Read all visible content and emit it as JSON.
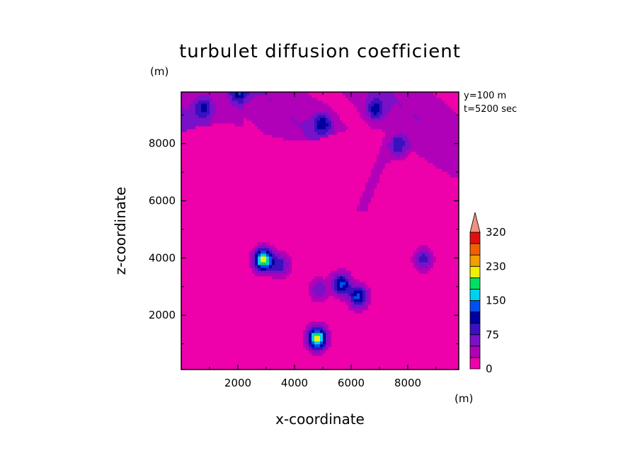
{
  "chart_data": {
    "type": "heatmap",
    "title": "turbulet diffusion coefficient",
    "xlabel": "x-coordinate",
    "ylabel": "z-coordinate",
    "x_unit": "(m)",
    "y_unit": "(m)",
    "xlim": [
      0,
      9800
    ],
    "ylim": [
      100,
      9800
    ],
    "xticks": [
      2000,
      4000,
      6000,
      8000
    ],
    "yticks": [
      2000,
      4000,
      6000,
      8000
    ],
    "annotations": [
      "y=100 m",
      "t=5200 sec"
    ],
    "colorbar": {
      "levels": [
        0,
        25,
        50,
        75,
        100,
        125,
        150,
        175,
        200,
        230,
        260,
        290,
        320
      ],
      "labels": [
        "0",
        "75",
        "150",
        "230",
        "320"
      ],
      "colors": [
        "#ee00aa",
        "#b000b8",
        "#7a10c8",
        "#3a10c0",
        "#0000a0",
        "#0050f0",
        "#00d0f0",
        "#00e060",
        "#f0f000",
        "#f0a000",
        "#f06000",
        "#e01010"
      ],
      "extend_color": "#f09080"
    },
    "features": [
      {
        "x": 2900,
        "z": 3950,
        "peak": 200
      },
      {
        "x": 3500,
        "z": 3750,
        "peak": 80
      },
      {
        "x": 4800,
        "z": 1200,
        "peak": 200
      },
      {
        "x": 5650,
        "z": 3100,
        "peak": 125
      },
      {
        "x": 6250,
        "z": 2650,
        "peak": 125
      },
      {
        "x": 4850,
        "z": 2900,
        "peak": 60
      },
      {
        "x": 8550,
        "z": 3980,
        "peak": 75
      },
      {
        "x": 2050,
        "z": 9780,
        "peak": 75
      },
      {
        "x": 800,
        "z": 9250,
        "peak": 75
      },
      {
        "x": 5000,
        "z": 8700,
        "peak": 80
      },
      {
        "x": 6850,
        "z": 9200,
        "peak": 80
      },
      {
        "x": 7700,
        "z": 7900,
        "peak": 80
      }
    ]
  }
}
